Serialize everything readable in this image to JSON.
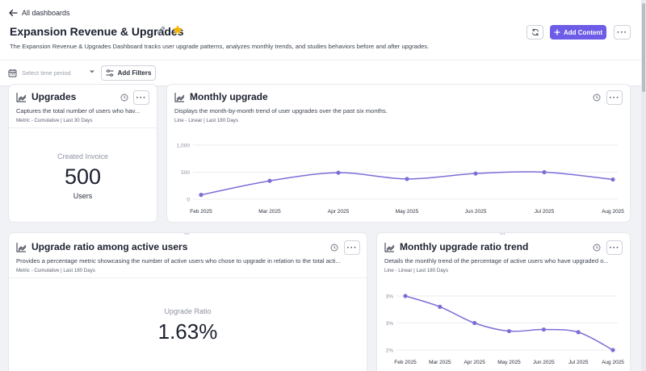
{
  "nav": {
    "back_label": "All dashboards"
  },
  "dashboard": {
    "title": "Expansion Revenue & Upgrades",
    "description": "The Expansion Revenue & Upgrades Dashboard tracks user upgrade patterns, analyzes monthly trends, and studies behaviors before and after upgrades.",
    "favorite": true,
    "accent_color": "#6c5ce7",
    "star_color": "#f5b400"
  },
  "toolbar": {
    "add_content_label": "Add Content",
    "more_label": "···"
  },
  "filters": {
    "time_placeholder": "Select time period",
    "add_filters_label": "Add Filters"
  },
  "cards": {
    "upgrades": {
      "title": "Upgrades",
      "description": "Captures the total number of users who hav...",
      "meta": "Metric - Cumulative | Last 30 Days",
      "metric_label": "Created Invoice",
      "metric_value": "500",
      "metric_unit": "Users",
      "more_label": "···"
    },
    "monthly_upgrade": {
      "title": "Monthly upgrade",
      "description": "Displays the month-by-month trend of user upgrades over the past six months.",
      "meta": "Line - Linear | Last 180 Days",
      "more_label": "···"
    },
    "upgrade_ratio": {
      "title": "Upgrade ratio among active users",
      "description": "Provides a percentage metric showcasing the number of active users who chose to upgrade in relation to the total acti...",
      "meta": "Metric - Cumulative | Last 180 Days",
      "metric_label": "Upgrade Ratio",
      "metric_value": "1.63%",
      "more_label": "···"
    },
    "ratio_trend": {
      "title": "Monthly upgrade ratio trend",
      "description": "Details the monthly trend of the percentage of active users who have upgraded o...",
      "meta": "Line - Linear | Last 180 Days",
      "more_label": "···"
    }
  },
  "chart_data": [
    {
      "type": "line",
      "title": "Monthly upgrade",
      "x": [
        "Feb 2025",
        "Mar 2025",
        "Apr 2025",
        "May 2025",
        "Jun 2025",
        "Jul 2025",
        "Aug 2025"
      ],
      "y_ticks": [
        "1,000",
        "500",
        "0"
      ],
      "ylim": [
        0,
        1000
      ],
      "series": [
        {
          "values": [
            80,
            340,
            490,
            375,
            475,
            500,
            365
          ]
        }
      ],
      "grid": "horizontal",
      "line_color": "#7b6fd6"
    },
    {
      "type": "line",
      "title": "Monthly upgrade ratio trend",
      "x": [
        "Feb 2025",
        "Mar 2025",
        "Apr 2025",
        "May 2025",
        "Jun 2025",
        "Jul 2025",
        "Aug 2025"
      ],
      "y_ticks": [
        "3%",
        "3%",
        "2%"
      ],
      "ylim": [
        2.0,
        3.0
      ],
      "series": [
        {
          "values": [
            3.0,
            2.8,
            2.5,
            2.35,
            2.38,
            2.33,
            2.0
          ]
        }
      ],
      "grid": "horizontal",
      "line_color": "#7b6fd6"
    }
  ]
}
